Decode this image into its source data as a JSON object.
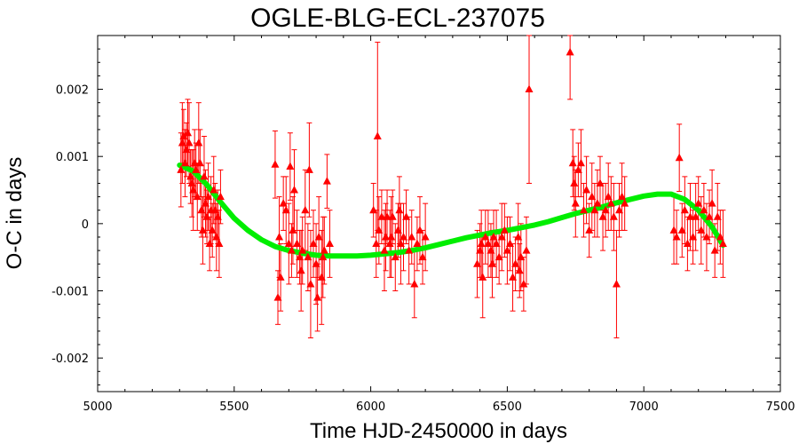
{
  "chart_data": {
    "type": "scatter",
    "title": "OGLE-BLG-ECL-237075",
    "xlabel": "Time HJD-2450000 in days",
    "ylabel": "O-C in days",
    "xlim": [
      5000,
      7500
    ],
    "ylim": [
      -0.0025,
      0.0028
    ],
    "x_ticks": [
      5000,
      5500,
      6000,
      6500,
      7000,
      7500
    ],
    "y_ticks": [
      -0.002,
      -0.001,
      0,
      0.001,
      0.002
    ],
    "x_tick_labels": [
      "5000",
      "5500",
      "6000",
      "6500",
      "7000",
      "7500"
    ],
    "y_tick_labels": [
      "-0.002",
      "-0.001",
      "0",
      "0.001",
      "0.002"
    ],
    "grid": false,
    "colors": {
      "points": "#ff0000",
      "fit": "#00ee00"
    },
    "series": [
      {
        "kind": "scatter-errorbar",
        "x": [
          5305,
          5310,
          5315,
          5320,
          5325,
          5330,
          5335,
          5340,
          5345,
          5350,
          5355,
          5360,
          5365,
          5370,
          5375,
          5380,
          5385,
          5390,
          5395,
          5400,
          5405,
          5410,
          5415,
          5420,
          5425,
          5430,
          5435,
          5440,
          5445,
          5450,
          5650,
          5660,
          5665,
          5670,
          5680,
          5690,
          5700,
          5705,
          5710,
          5715,
          5720,
          5730,
          5740,
          5745,
          5750,
          5760,
          5770,
          5775,
          5780,
          5790,
          5800,
          5805,
          5810,
          5820,
          5825,
          5830,
          5840,
          5850,
          6010,
          6020,
          6025,
          6030,
          6040,
          6050,
          6055,
          6060,
          6070,
          6075,
          6080,
          6090,
          6100,
          6105,
          6110,
          6120,
          6130,
          6140,
          6150,
          6160,
          6170,
          6180,
          6190,
          6200,
          6390,
          6400,
          6405,
          6410,
          6420,
          6430,
          6440,
          6445,
          6450,
          6460,
          6470,
          6480,
          6490,
          6500,
          6510,
          6520,
          6530,
          6540,
          6545,
          6550,
          6560,
          6570,
          6580,
          6730,
          6740,
          6745,
          6750,
          6760,
          6770,
          6780,
          6790,
          6800,
          6810,
          6820,
          6830,
          6840,
          6850,
          6860,
          6870,
          6880,
          6890,
          6900,
          6910,
          6920,
          6930,
          7110,
          7120,
          7130,
          7140,
          7150,
          7160,
          7170,
          7180,
          7190,
          7200,
          7210,
          7220,
          7230,
          7240,
          7250,
          7260,
          7270,
          7280,
          7290
        ],
        "y": [
          0.0008,
          0.0012,
          0.0013,
          0.0009,
          0.0011,
          0.00135,
          0.0012,
          0.0007,
          0.0006,
          0.0005,
          0.0009,
          0.0008,
          0.0004,
          0.0012,
          0.0009,
          0.0002,
          -0.0001,
          0.0007,
          0.0003,
          0.0001,
          0.0004,
          -0.0003,
          0.0002,
          -0.0001,
          0.0005,
          0.0002,
          -0.0002,
          0.0001,
          -0.0003,
          0.0004,
          0.00088,
          -0.0011,
          -0.0002,
          -0.0008,
          0.0003,
          0.0002,
          -0.0003,
          0.00085,
          -0.0004,
          -0.0001,
          0.0005,
          -0.0003,
          -0.0005,
          -0.0007,
          -0.0004,
          0.0002,
          -0.0005,
          0.0008,
          -0.0009,
          -0.0003,
          -0.0006,
          -0.0011,
          -0.0002,
          -0.0008,
          -0.0005,
          -0.0004,
          0.00063,
          -0.0003,
          0.0002,
          -0.0003,
          0.0013,
          -0.0001,
          0.0001,
          -0.0004,
          -0.0002,
          0.0001,
          -0.0003,
          -0.0002,
          0.0001,
          -0.0005,
          -0.0001,
          0.0002,
          -0.0003,
          -0.0002,
          0.0001,
          -0.0004,
          -0.0002,
          -0.0009,
          -0.0003,
          -0.0001,
          -0.0005,
          -0.0002,
          -0.0006,
          -0.0004,
          -0.0003,
          -0.0008,
          -0.0002,
          -0.0003,
          -0.0004,
          -0.0006,
          -0.0002,
          -0.0003,
          -0.0005,
          -0.0002,
          -0.0001,
          -0.0004,
          -0.0003,
          -0.0008,
          -0.0006,
          -0.0002,
          -0.0007,
          -0.0005,
          -0.0009,
          -0.0004,
          0.002,
          0.00255,
          0.0009,
          0.0006,
          0.0003,
          0.0008,
          0.0009,
          0.0002,
          0.0005,
          -0.0001,
          0.0004,
          0.0002,
          0.0003,
          0.0006,
          0.0001,
          0.0002,
          0.0004,
          0.0003,
          0.0001,
          -0.0009,
          0.0002,
          0.0004,
          0.0003,
          -0.0001,
          -0.0002,
          0.00098,
          -0.0001,
          0.0002,
          -0.0003,
          0.0001,
          -0.0002,
          0.0001,
          0.0003,
          -0.0001,
          0.0002,
          -0.0002,
          0.0001,
          0.0003,
          -0.0004,
          0.0001,
          -0.0002,
          -0.0003
        ],
        "err": [
          0.00055,
          0.0006,
          0.0004,
          0.0005,
          0.0004,
          0.0005,
          0.0006,
          0.0004,
          0.0005,
          0.0006,
          0.0005,
          0.0004,
          0.0005,
          0.0006,
          0.0005,
          0.0004,
          0.0005,
          0.0006,
          0.0005,
          0.0004,
          0.0005,
          0.0004,
          0.0005,
          0.0004,
          0.0005,
          0.0004,
          0.0005,
          0.0004,
          0.0005,
          0.0004,
          0.0005,
          0.0004,
          0.0006,
          0.0005,
          0.0004,
          0.0005,
          0.0006,
          0.0005,
          0.0004,
          0.0005,
          0.0006,
          0.0005,
          0.0004,
          0.0006,
          0.0005,
          0.0006,
          0.0005,
          0.0007,
          0.0008,
          0.0005,
          0.0006,
          0.0005,
          0.0006,
          0.0007,
          0.0006,
          0.0005,
          0.0004,
          0.0005,
          0.0004,
          0.0005,
          0.0014,
          0.0005,
          0.0004,
          0.0006,
          0.0005,
          0.0004,
          0.0005,
          0.0006,
          0.0004,
          0.0005,
          0.0004,
          0.0005,
          0.0006,
          0.0005,
          0.0004,
          0.0005,
          0.0004,
          0.0005,
          0.0004,
          0.0005,
          0.0004,
          0.0005,
          0.0005,
          0.0004,
          0.0005,
          0.0006,
          0.0004,
          0.0005,
          0.0004,
          0.0005,
          0.0004,
          0.0005,
          0.0004,
          0.0005,
          0.0004,
          0.0005,
          0.0004,
          0.0005,
          0.0004,
          0.0005,
          0.0004,
          0.0005,
          0.0004,
          0.0005,
          0.0014,
          0.0007,
          0.0005,
          0.0004,
          0.0005,
          0.0004,
          0.0005,
          0.0004,
          0.0005,
          0.0004,
          0.0005,
          0.0004,
          0.0005,
          0.0004,
          0.0005,
          0.0004,
          0.0005,
          0.0004,
          0.0005,
          0.0008,
          0.0004,
          0.0005,
          0.0004,
          0.0005,
          0.0004,
          0.0005,
          0.0004,
          0.0005,
          0.0004,
          0.0005,
          0.0004,
          0.0005,
          0.0004,
          0.0005,
          0.0004,
          0.0005,
          0.0004,
          0.0005,
          0.0004,
          0.0005,
          0.0004,
          0.0005
        ]
      },
      {
        "kind": "fit-line",
        "x": [
          5300,
          5350,
          5400,
          5450,
          5500,
          5550,
          5600,
          5650,
          5700,
          5750,
          5800,
          5850,
          5900,
          5950,
          6000,
          6050,
          6100,
          6150,
          6200,
          6250,
          6300,
          6350,
          6400,
          6450,
          6500,
          6550,
          6600,
          6650,
          6700,
          6750,
          6800,
          6850,
          6900,
          6950,
          7000,
          7050,
          7100,
          7150,
          7200,
          7250,
          7290
        ],
        "y": [
          0.00087,
          0.00078,
          0.00058,
          0.00032,
          8e-05,
          -0.0001,
          -0.00024,
          -0.00034,
          -0.0004,
          -0.00044,
          -0.00047,
          -0.00048,
          -0.00048,
          -0.00048,
          -0.00047,
          -0.00045,
          -0.00043,
          -0.0004,
          -0.00036,
          -0.00031,
          -0.00026,
          -0.00021,
          -0.00017,
          -0.00013,
          -0.0001,
          -6e-05,
          -2e-05,
          3e-05,
          9e-05,
          0.00015,
          0.0002,
          0.00025,
          0.00031,
          0.00036,
          0.00041,
          0.00044,
          0.00044,
          0.00036,
          0.0002,
          -5e-05,
          -0.00032
        ]
      }
    ]
  }
}
